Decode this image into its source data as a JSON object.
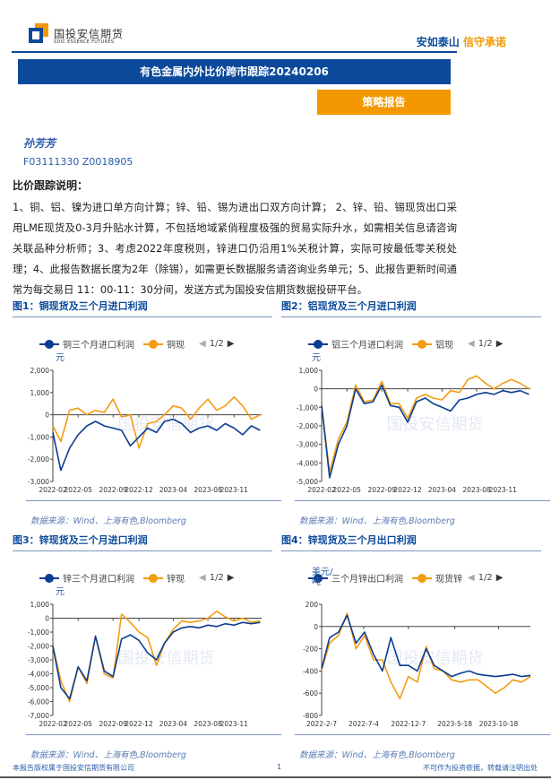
{
  "header": {
    "logo_cn": "国投安信期货",
    "logo_en": "SDIC ESSENCE FUTURES",
    "slogan_a": "安如泰山",
    "slogan_b": "信守承诺"
  },
  "title": "有色金属内外比价跨市跟踪20240206",
  "tag": "策略报告",
  "author": "孙芳芳",
  "codes": "F03111330 Z0018905",
  "note_title": "比价跟踪说明：",
  "note": "1、铜、铝、镍为进口单方向计算；锌、铅、锡为进出口双方向计算； 2、锌、铅、锡现货出口采用LME现货及0-3月升贴水计算，不包括地域紧俏程度极强的贸易实际升水，如需相关信息请咨询关联品种分析师；3、考虑2022年度税则，锌进口仍沿用1%关税计算，实际可按最低零关税处理；4、此报告数据长度为2年（除锡），如需更长数据服务请咨询业务单元；5、此报告更新时间通常为每交易日 11：00-11：30分间，发送方式为国投安信期货数据投研平台。",
  "colors": {
    "brand_blue": "#0b4a9b",
    "brand_orange": "#f39800",
    "series1": "#0b3d91",
    "series2": "#f39c12"
  },
  "footer": {
    "left": "本报告版权属于国投安信期货有限公司",
    "page": "1",
    "right": "不可作为投资依据，转载请注明出处"
  },
  "chart_data": [
    {
      "type": "line",
      "title": "图1：铜现货及三个月进口利润",
      "unit": "元",
      "source": "数据来源：Wind、上海有色,Bloomberg",
      "pager": "1/2",
      "ylim": [
        -3000,
        2000
      ],
      "yticks": [
        "2,000",
        "1,000",
        "0",
        "-1,000",
        "-2,000",
        "-3,000"
      ],
      "ytick_values": [
        2000,
        1000,
        0,
        -1000,
        -2000,
        -3000
      ],
      "xlim": [
        "2022-02-01",
        "2024-02-06"
      ],
      "xticks": [
        "2022-02",
        "2022-05",
        "2022-09",
        "2022-12",
        "2023-04",
        "2023-08",
        "2023-11"
      ],
      "series": [
        {
          "name": "铜三个月进口利润",
          "color": "#0b3d91",
          "x_start": "2022-02",
          "step": "month",
          "values": [
            -800,
            -2500,
            -1500,
            -900,
            -500,
            -300,
            -500,
            -600,
            -700,
            -1400,
            -1000,
            -600,
            -800,
            -300,
            -200,
            -400,
            -800,
            -600,
            -500,
            -700,
            -400,
            -600,
            -900,
            -500,
            -700
          ]
        },
        {
          "name": "铜现",
          "color": "#f39c12",
          "x_start": "2022-02",
          "step": "month",
          "values": [
            -500,
            -1200,
            200,
            300,
            0,
            200,
            100,
            700,
            -100,
            0,
            -1500,
            -400,
            -300,
            0,
            400,
            300,
            -200,
            300,
            700,
            200,
            400,
            800,
            400,
            -200,
            0
          ]
        }
      ]
    },
    {
      "type": "line",
      "title": "图2：铝现货及三个月进口利润",
      "unit": "元",
      "source": "数据来源：Wind、上海有色,Bloomberg",
      "pager": "1/2",
      "ylim": [
        -5000,
        1000
      ],
      "yticks": [
        "1,000",
        "0",
        "-1,000",
        "-2,000",
        "-3,000",
        "-4,000",
        "-5,000"
      ],
      "ytick_values": [
        1000,
        0,
        -1000,
        -2000,
        -3000,
        -4000,
        -5000
      ],
      "xlim": [
        "2022-02-01",
        "2024-02-06"
      ],
      "xticks": [
        "2022-02",
        "2022-05",
        "2022-09",
        "2022-12",
        "2023-04",
        "2023-08",
        "2023-11"
      ],
      "series": [
        {
          "name": "铝三个月进口利润",
          "color": "#0b3d91",
          "x_start": "2022-02",
          "step": "month",
          "values": [
            -900,
            -4800,
            -3000,
            -2000,
            0,
            -800,
            -700,
            200,
            -900,
            -1000,
            -1800,
            -700,
            -500,
            -800,
            -1000,
            -1200,
            -600,
            -500,
            -300,
            -200,
            -300,
            -100,
            -200,
            -100,
            -300
          ]
        },
        {
          "name": "铝现",
          "color": "#f39c12",
          "x_start": "2022-02",
          "step": "month",
          "values": [
            -900,
            -4500,
            -2700,
            -1800,
            200,
            -700,
            -600,
            400,
            -800,
            -800,
            -1600,
            -500,
            -300,
            -500,
            -600,
            -100,
            -200,
            500,
            700,
            300,
            0,
            300,
            500,
            300,
            0
          ]
        }
      ]
    },
    {
      "type": "line",
      "title": "图3：锌现货及三个月进口利润",
      "unit": "元",
      "source": "数据来源：Wind、上海有色,Bloomberg",
      "pager": "1/2",
      "ylim": [
        -7000,
        1000
      ],
      "yticks": [
        "1,000",
        "0",
        "-1,000",
        "-2,000",
        "-3,000",
        "-4,000",
        "-5,000",
        "-6,000",
        "-7,000"
      ],
      "ytick_values": [
        1000,
        0,
        -1000,
        -2000,
        -3000,
        -4000,
        -5000,
        -6000,
        -7000
      ],
      "xlim": [
        "2022-02-01",
        "2024-02-06"
      ],
      "xticks": [
        "2022-02",
        "2022-05",
        "2022-09",
        "2022-12",
        "2023-04",
        "2023-08",
        "2023-11"
      ],
      "series": [
        {
          "name": "锌三个月进口利润",
          "color": "#0b3d91",
          "x_start": "2022-02",
          "step": "month",
          "values": [
            -2000,
            -5000,
            -5800,
            -3500,
            -4500,
            -1300,
            -3800,
            -4200,
            -1500,
            -1200,
            -1600,
            -2500,
            -3000,
            -1800,
            -1000,
            -700,
            -600,
            -700,
            -500,
            -600,
            -400,
            -500,
            -300,
            -400,
            -300
          ]
        },
        {
          "name": "锌现",
          "color": "#f39c12",
          "x_start": "2022-02",
          "step": "month",
          "values": [
            -2000,
            -4500,
            -6000,
            -3500,
            -4700,
            -1300,
            -4000,
            -4300,
            300,
            -300,
            -1000,
            -1400,
            -3400,
            -1800,
            -800,
            -200,
            -300,
            -200,
            0,
            500,
            100,
            -200,
            0,
            -300,
            -200
          ]
        }
      ]
    },
    {
      "type": "line",
      "title": "图4：锌现货及三个月出口利润",
      "unit": "美元/吨",
      "source": "数据来源：Wind、上海有色,Bloomberg",
      "pager": "1/2",
      "ylim": [
        -800,
        200
      ],
      "yticks": [
        "200",
        "0",
        "-200",
        "-400",
        "-600",
        "-800"
      ],
      "ytick_values": [
        200,
        0,
        -200,
        -400,
        -600,
        -800
      ],
      "xlim": [
        "2022-02-07",
        "2024-02-06"
      ],
      "xticks": [
        "2022-2-7",
        "2022-7-4",
        "2022-12-7",
        "2023-5-18",
        "2023-10-18"
      ],
      "series": [
        {
          "name": "三个月锌出口利润",
          "color": "#0b3d91",
          "x_start": "2022-02",
          "step": "month",
          "values": [
            -380,
            -100,
            -50,
            100,
            -150,
            -50,
            -250,
            -400,
            -100,
            -350,
            -350,
            -400,
            -200,
            -350,
            -400,
            -450,
            -420,
            -400,
            -430,
            -440,
            -450,
            -440,
            -430,
            -450,
            -440
          ]
        },
        {
          "name": "现货锌",
          "color": "#f39c12",
          "x_start": "2022-02",
          "step": "month",
          "values": [
            -390,
            -150,
            -80,
            120,
            -200,
            -80,
            -300,
            -300,
            -500,
            -650,
            -450,
            -500,
            -180,
            -380,
            -400,
            -480,
            -500,
            -480,
            -480,
            -540,
            -600,
            -550,
            -480,
            -500,
            -450
          ]
        }
      ]
    }
  ]
}
